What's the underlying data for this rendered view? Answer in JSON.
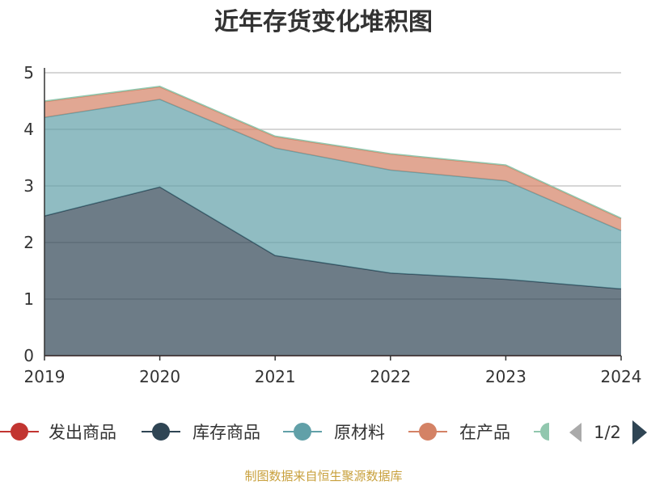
{
  "chart_data": {
    "type": "area",
    "stacked": true,
    "title": "近年存货变化堆积图",
    "x": [
      "2019",
      "2020",
      "2021",
      "2022",
      "2023",
      "2024"
    ],
    "ylim": [
      0,
      5
    ],
    "yticks": [
      "0",
      "1",
      "2",
      "3",
      "4",
      "5"
    ],
    "grid": true,
    "series": [
      {
        "name": "发出商品",
        "color": "#c23531",
        "values": [
          0,
          0,
          0,
          0,
          0,
          0
        ]
      },
      {
        "name": "库存商品",
        "color": "#2f4554",
        "values": [
          2.47,
          2.98,
          1.77,
          1.46,
          1.35,
          1.18
        ]
      },
      {
        "name": "原材料",
        "color": "#61a0a8",
        "values": [
          1.74,
          1.55,
          1.9,
          1.82,
          1.74,
          1.03
        ]
      },
      {
        "name": "在产品",
        "color": "#d48265",
        "values": [
          0.28,
          0.22,
          0.2,
          0.28,
          0.27,
          0.21
        ]
      },
      {
        "name": "",
        "color": "#91c7ae",
        "values": [
          0.01,
          0.01,
          0.01,
          0.01,
          0.01,
          0.01
        ]
      }
    ],
    "legend": {
      "position": "bottom",
      "page": "1/2"
    }
  },
  "source_note": "制图数据来自恒生聚源数据库",
  "source_color": "#c8a03c"
}
